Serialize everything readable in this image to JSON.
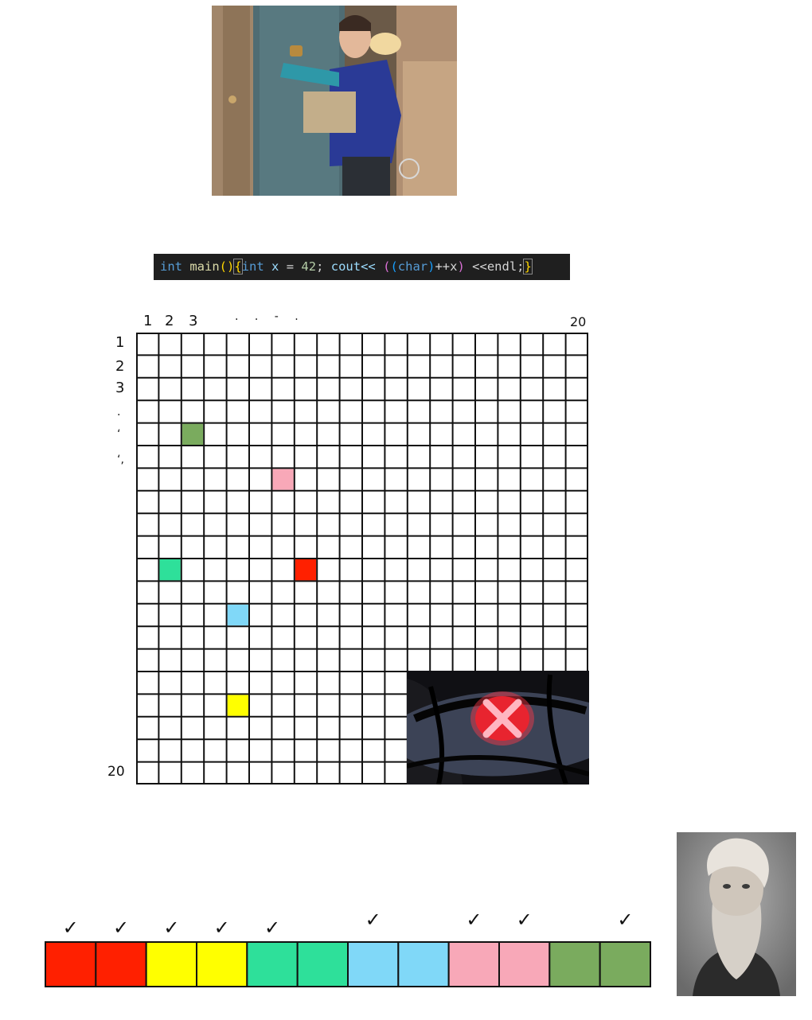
{
  "code": {
    "t1": "int",
    "t2": "main",
    "t3": "()",
    "t4": "{",
    "t5": "int",
    "t6": "x",
    "t7": "=",
    "t8": "42",
    "t9": ";",
    "t10": "cout<<",
    "t11": "(",
    "t12": "(",
    "t13": "char",
    "t14": ")",
    "t15": "++x",
    "t16": ")",
    "t17": "<<endl;",
    "t18": "}"
  },
  "grid": {
    "rows": 20,
    "cols": 20,
    "col_labels": {
      "c1": "1",
      "c2": "2",
      "c3": "3",
      "dots": ". . - .",
      "c20": "20"
    },
    "row_labels": {
      "r1": "1",
      "r2": "2",
      "r3": "3",
      "dots1": ".",
      "dots2": "‘",
      "dots3": "‘,",
      "r20": "20"
    },
    "filled_cells": [
      {
        "row": 5,
        "col": 3,
        "color": "#7aab5e"
      },
      {
        "row": 7,
        "col": 7,
        "color": "#f8a8b8"
      },
      {
        "row": 11,
        "col": 2,
        "color": "#2ee09a"
      },
      {
        "row": 11,
        "col": 8,
        "color": "#ff2000"
      },
      {
        "row": 13,
        "col": 5,
        "color": "#80d8f8"
      },
      {
        "row": 17,
        "col": 5,
        "color": "#ffff00"
      }
    ]
  },
  "strip": {
    "colors": [
      "#ff2000",
      "#ff2000",
      "#ffff00",
      "#ffff00",
      "#2ee09a",
      "#2ee09a",
      "#80d8f8",
      "#80d8f8",
      "#f8a8b8",
      "#f8a8b8",
      "#7aab5e",
      "#7aab5e"
    ],
    "check_mark": "✓"
  }
}
